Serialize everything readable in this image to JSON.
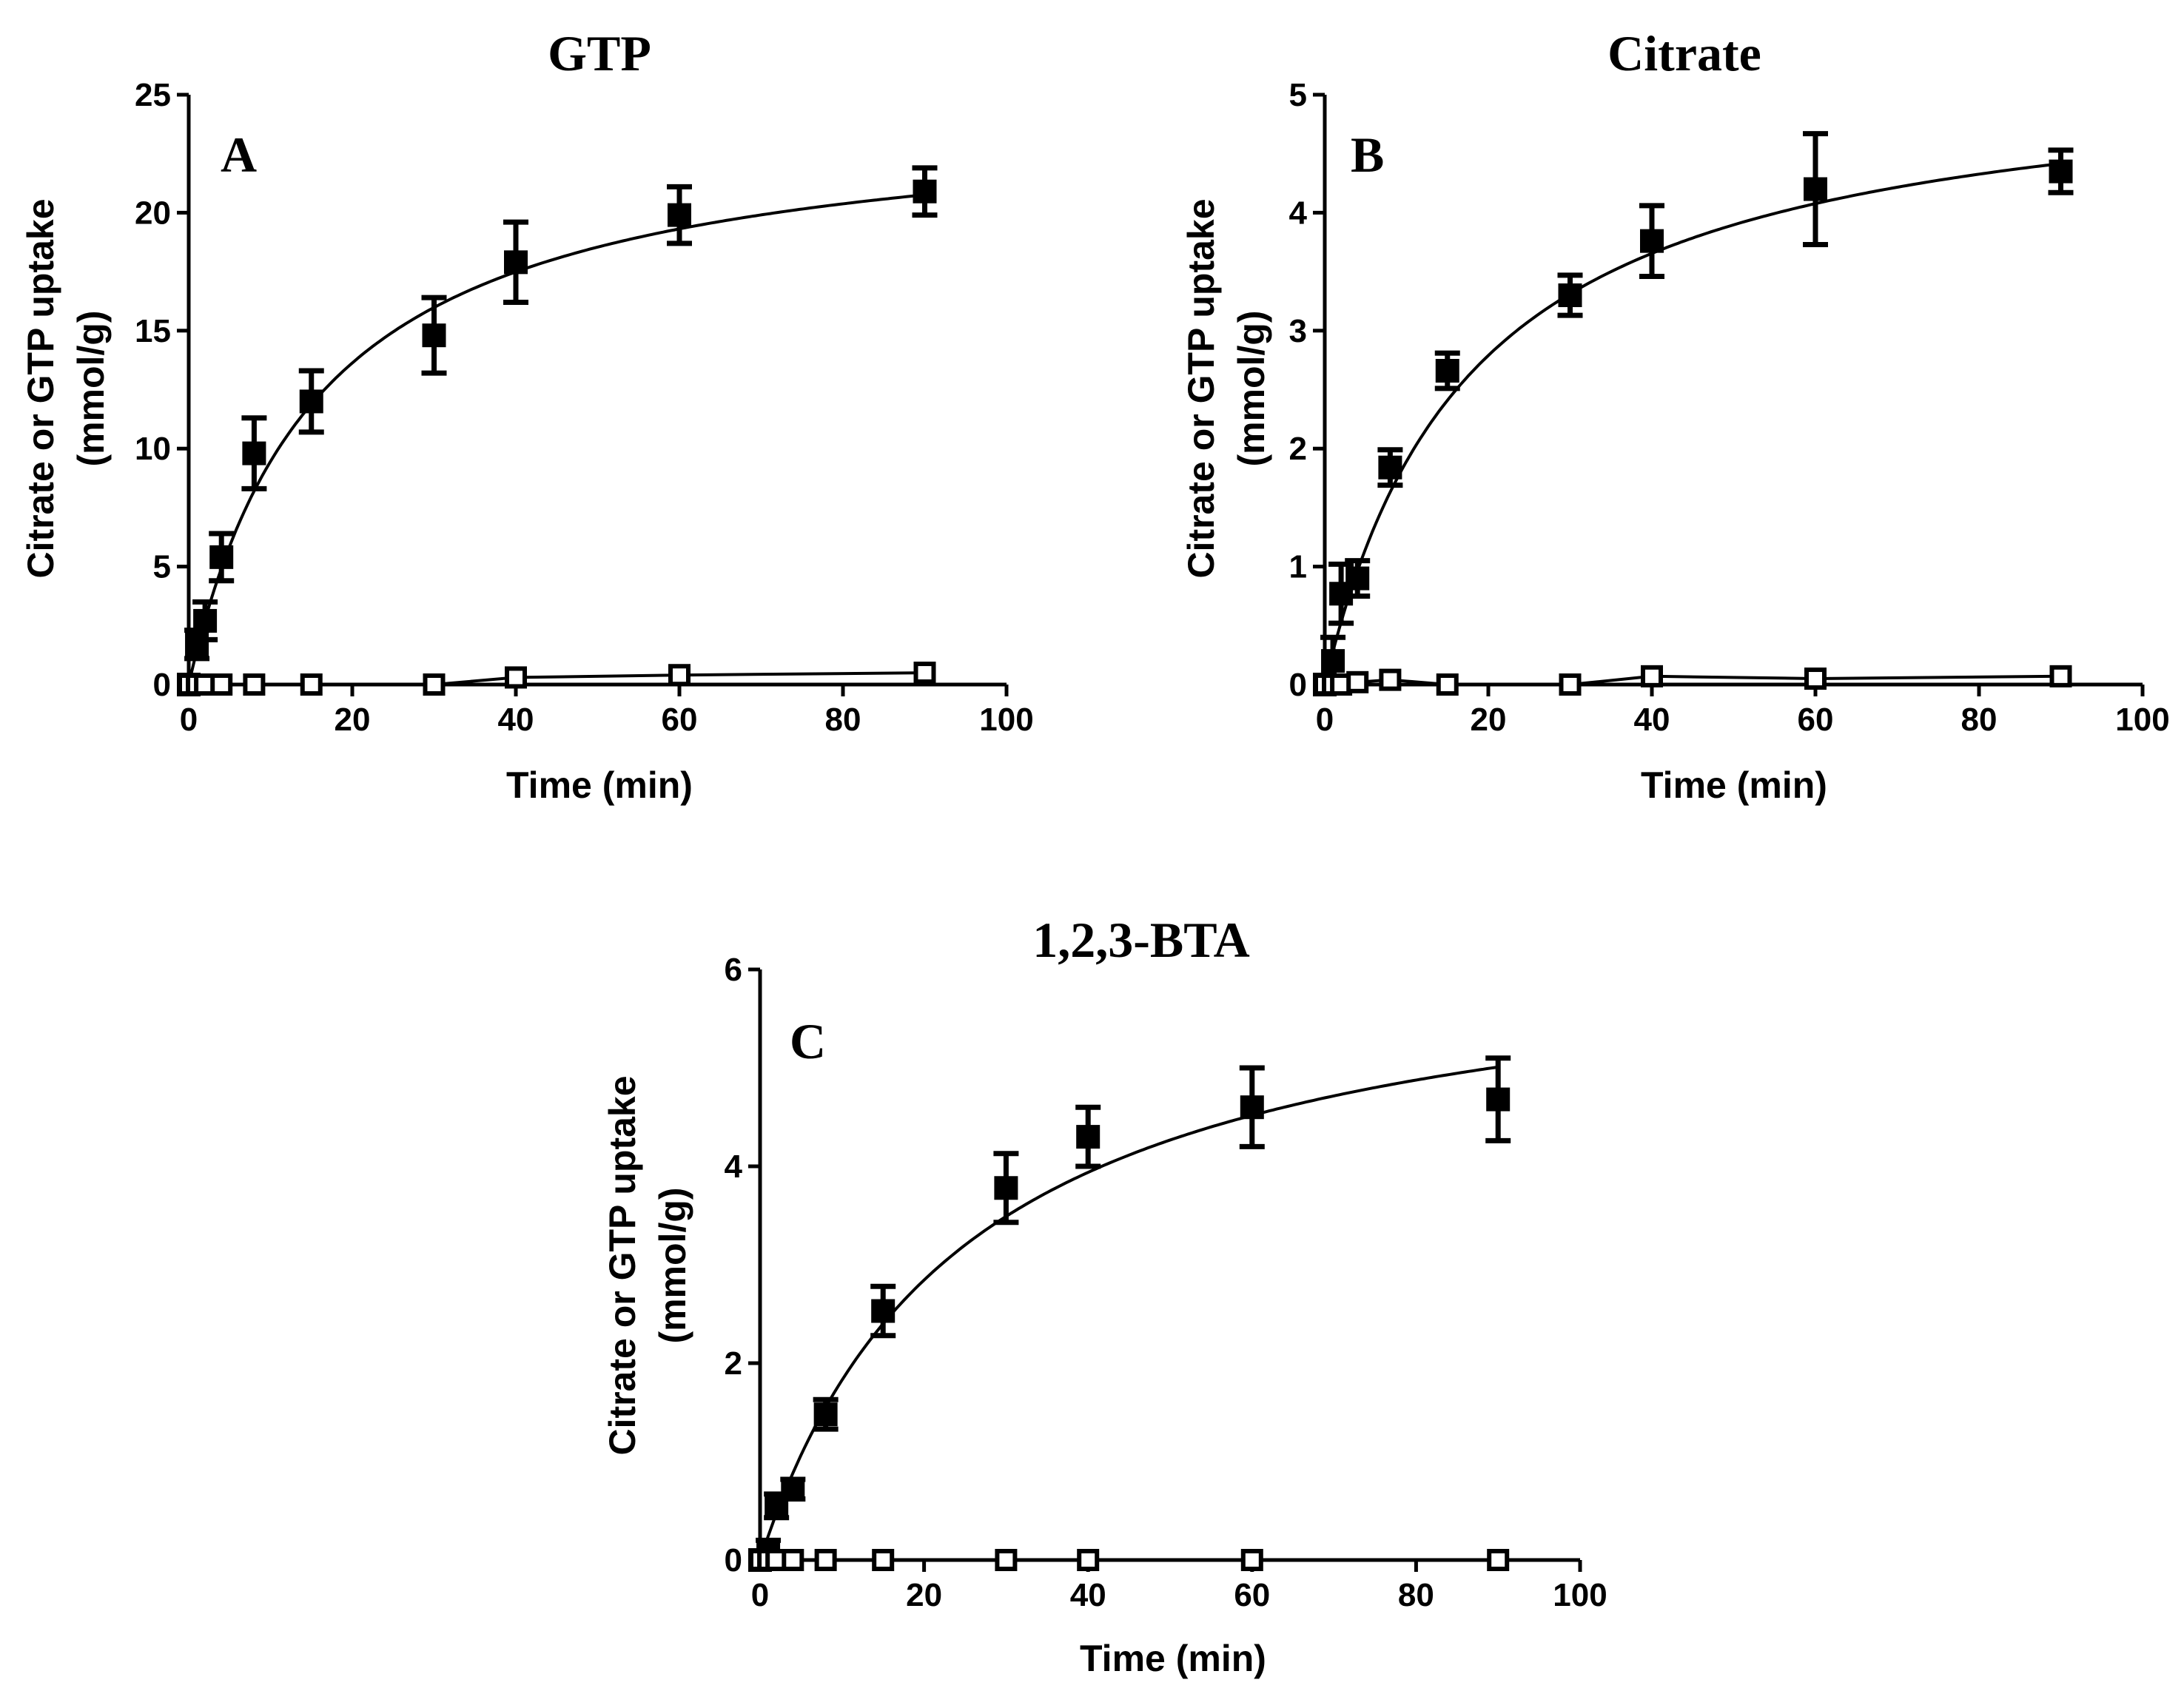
{
  "chart_data": [
    {
      "type": "scatter",
      "panel_letter": "A",
      "title": "GTP",
      "xlabel": "Time (min)",
      "ylabel": [
        "Citrate or GTP uptake",
        "(mmol/g)"
      ],
      "xlim": [
        0,
        100
      ],
      "ylim": [
        0,
        25
      ],
      "xticks": [
        0,
        20,
        40,
        60,
        80,
        100
      ],
      "yticks": [
        0,
        5,
        10,
        15,
        20,
        25
      ],
      "grid": false,
      "fit_filled": {
        "vmax": 24.4,
        "k": 15.8
      },
      "series": [
        {
          "marker": "filled-square",
          "x": [
            0,
            1,
            2,
            4,
            8,
            15,
            30,
            40,
            60,
            90
          ],
          "y": [
            0,
            1.7,
            2.7,
            5.4,
            9.8,
            12.0,
            14.8,
            17.9,
            19.9,
            20.9
          ],
          "err": [
            0,
            0.6,
            0.8,
            1.0,
            1.5,
            1.3,
            1.6,
            1.7,
            1.2,
            1.0
          ]
        },
        {
          "marker": "open-square",
          "x": [
            0,
            1,
            2,
            4,
            8,
            15,
            30,
            40,
            60,
            90
          ],
          "y": [
            0,
            0,
            0,
            0,
            0,
            0,
            0,
            0.3,
            0.4,
            0.5
          ],
          "err": [
            0,
            0,
            0,
            0,
            0,
            0,
            0,
            0,
            0,
            0
          ]
        }
      ]
    },
    {
      "type": "scatter",
      "panel_letter": "B",
      "title": "Citrate",
      "xlabel": "Time (min)",
      "ylabel": [
        "Citrate or GTP uptake",
        "(mmol/g)"
      ],
      "xlim": [
        0,
        100
      ],
      "ylim": [
        0,
        5
      ],
      "xticks": [
        0,
        20,
        40,
        60,
        80,
        100
      ],
      "yticks": [
        0,
        1,
        2,
        3,
        4,
        5
      ],
      "grid": false,
      "fit_filled": {
        "vmax": 5.3,
        "k": 18
      },
      "series": [
        {
          "marker": "filled-square",
          "x": [
            0,
            1,
            2,
            4,
            8,
            15,
            30,
            40,
            60,
            90
          ],
          "y": [
            0,
            0.2,
            0.77,
            0.9,
            1.84,
            2.66,
            3.3,
            3.76,
            4.2,
            4.35
          ],
          "err": [
            0,
            0.2,
            0.25,
            0.15,
            0.15,
            0.15,
            0.17,
            0.3,
            0.47,
            0.18
          ]
        },
        {
          "marker": "open-square",
          "x": [
            0,
            1,
            2,
            4,
            8,
            15,
            30,
            40,
            60,
            90
          ],
          "y": [
            0,
            0,
            0,
            0.02,
            0.04,
            0,
            0,
            0.07,
            0.05,
            0.07
          ],
          "err": [
            0,
            0,
            0,
            0,
            0,
            0,
            0,
            0,
            0,
            0
          ]
        }
      ]
    },
    {
      "type": "scatter",
      "panel_letter": "C",
      "title": "1,2,3-BTA",
      "xlabel": "Time (min)",
      "ylabel": [
        "Citrate or GTP uptake",
        "(mmol/g)"
      ],
      "xlim": [
        0,
        100
      ],
      "ylim": [
        0,
        6
      ],
      "xticks": [
        0,
        20,
        40,
        60,
        80,
        100
      ],
      "yticks": [
        0,
        2,
        4,
        6
      ],
      "grid": false,
      "fit_filled": {
        "vmax": 6.4,
        "k": 25
      },
      "series": [
        {
          "marker": "filled-square",
          "x": [
            0,
            1,
            2,
            4,
            8,
            15,
            30,
            40,
            60,
            90
          ],
          "y": [
            0,
            0.1,
            0.55,
            0.72,
            1.48,
            2.53,
            3.78,
            4.3,
            4.6,
            4.68
          ],
          "err": [
            0,
            0.1,
            0.12,
            0.1,
            0.15,
            0.25,
            0.35,
            0.3,
            0.4,
            0.42
          ]
        },
        {
          "marker": "open-square",
          "x": [
            0,
            1,
            2,
            4,
            8,
            15,
            30,
            40,
            60,
            90
          ],
          "y": [
            0,
            0,
            0,
            0,
            0,
            0,
            0,
            0,
            0,
            0
          ],
          "err": [
            0,
            0,
            0,
            0,
            0,
            0,
            0,
            0,
            0,
            0
          ]
        }
      ]
    }
  ]
}
